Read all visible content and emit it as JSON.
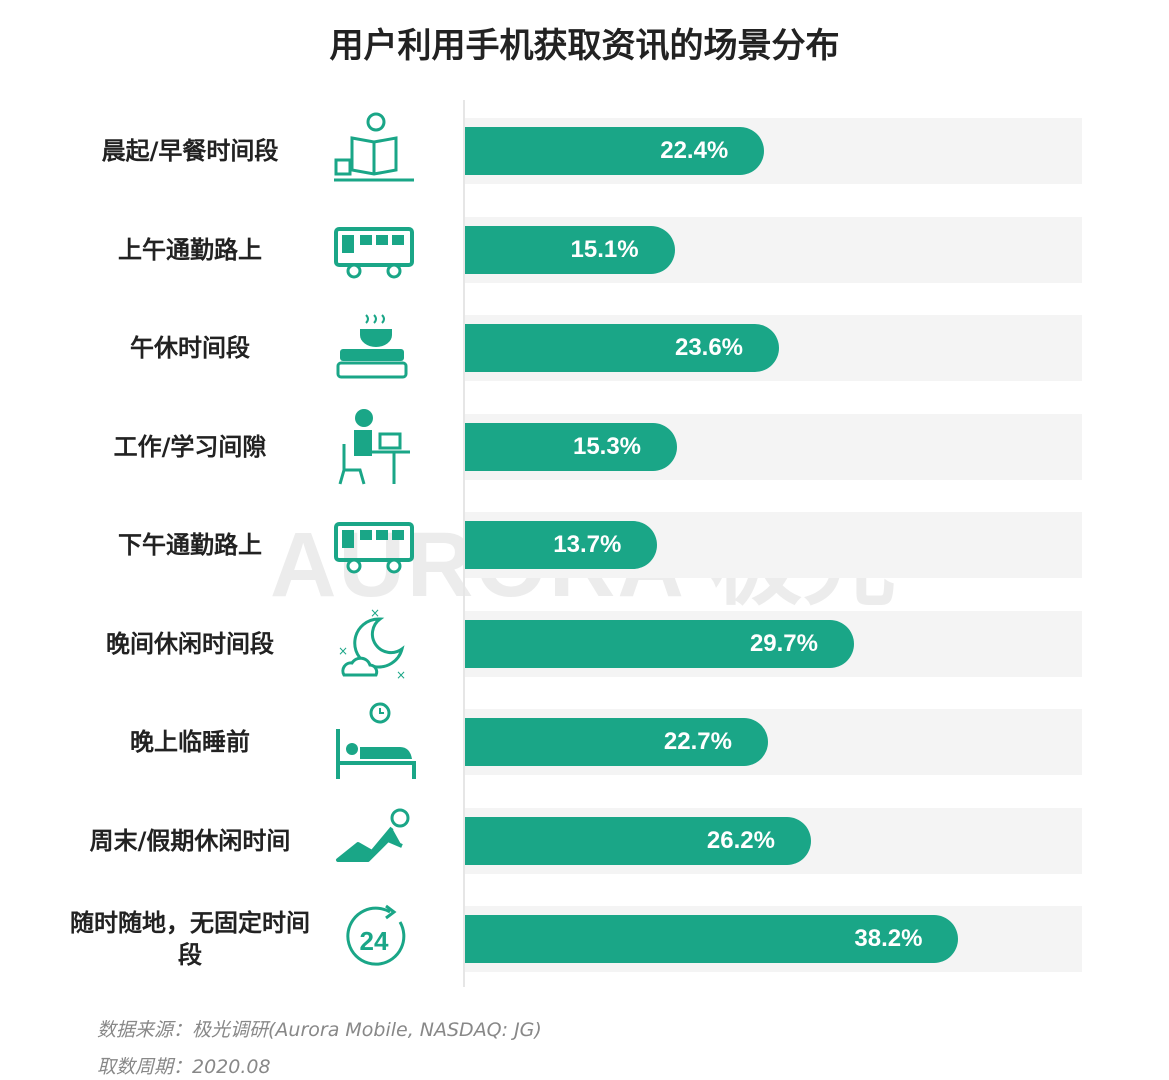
{
  "chart_data": {
    "type": "bar",
    "orientation": "horizontal",
    "title": "用户利用手机获取资讯的场景分布",
    "categories": [
      "晨起/早餐时间段",
      "上午通勤路上",
      "午休时间段",
      "工作/学习间隙",
      "下午通勤路上",
      "晚间休闲时间段",
      "晚上临睡前",
      "周末/假期休闲时间",
      "随时随地，无固定时间段"
    ],
    "values": [
      22.4,
      15.1,
      23.6,
      15.3,
      13.7,
      29.7,
      22.7,
      26.2,
      38.2
    ],
    "value_labels": [
      "22.4%",
      "15.1%",
      "23.6%",
      "15.3%",
      "13.7%",
      "29.7%",
      "22.7%",
      "26.2%",
      "38.2%"
    ],
    "icons": [
      "reading-breakfast-icon",
      "bus-icon",
      "coffee-books-icon",
      "desk-worker-icon",
      "bus-icon",
      "moon-cloud-icon",
      "bed-clock-icon",
      "reclining-person-icon",
      "24-hours-icon"
    ],
    "unit": "%",
    "grid": false,
    "legend": "none",
    "colors": {
      "bar": "#1aa687",
      "track": "#f4f4f4",
      "text": "#222222"
    }
  },
  "watermark": "AURORA 极光",
  "footer": {
    "source": "数据来源：极光调研(Aurora Mobile, NASDAQ: JG)",
    "period": "取数周期：2020.08"
  }
}
